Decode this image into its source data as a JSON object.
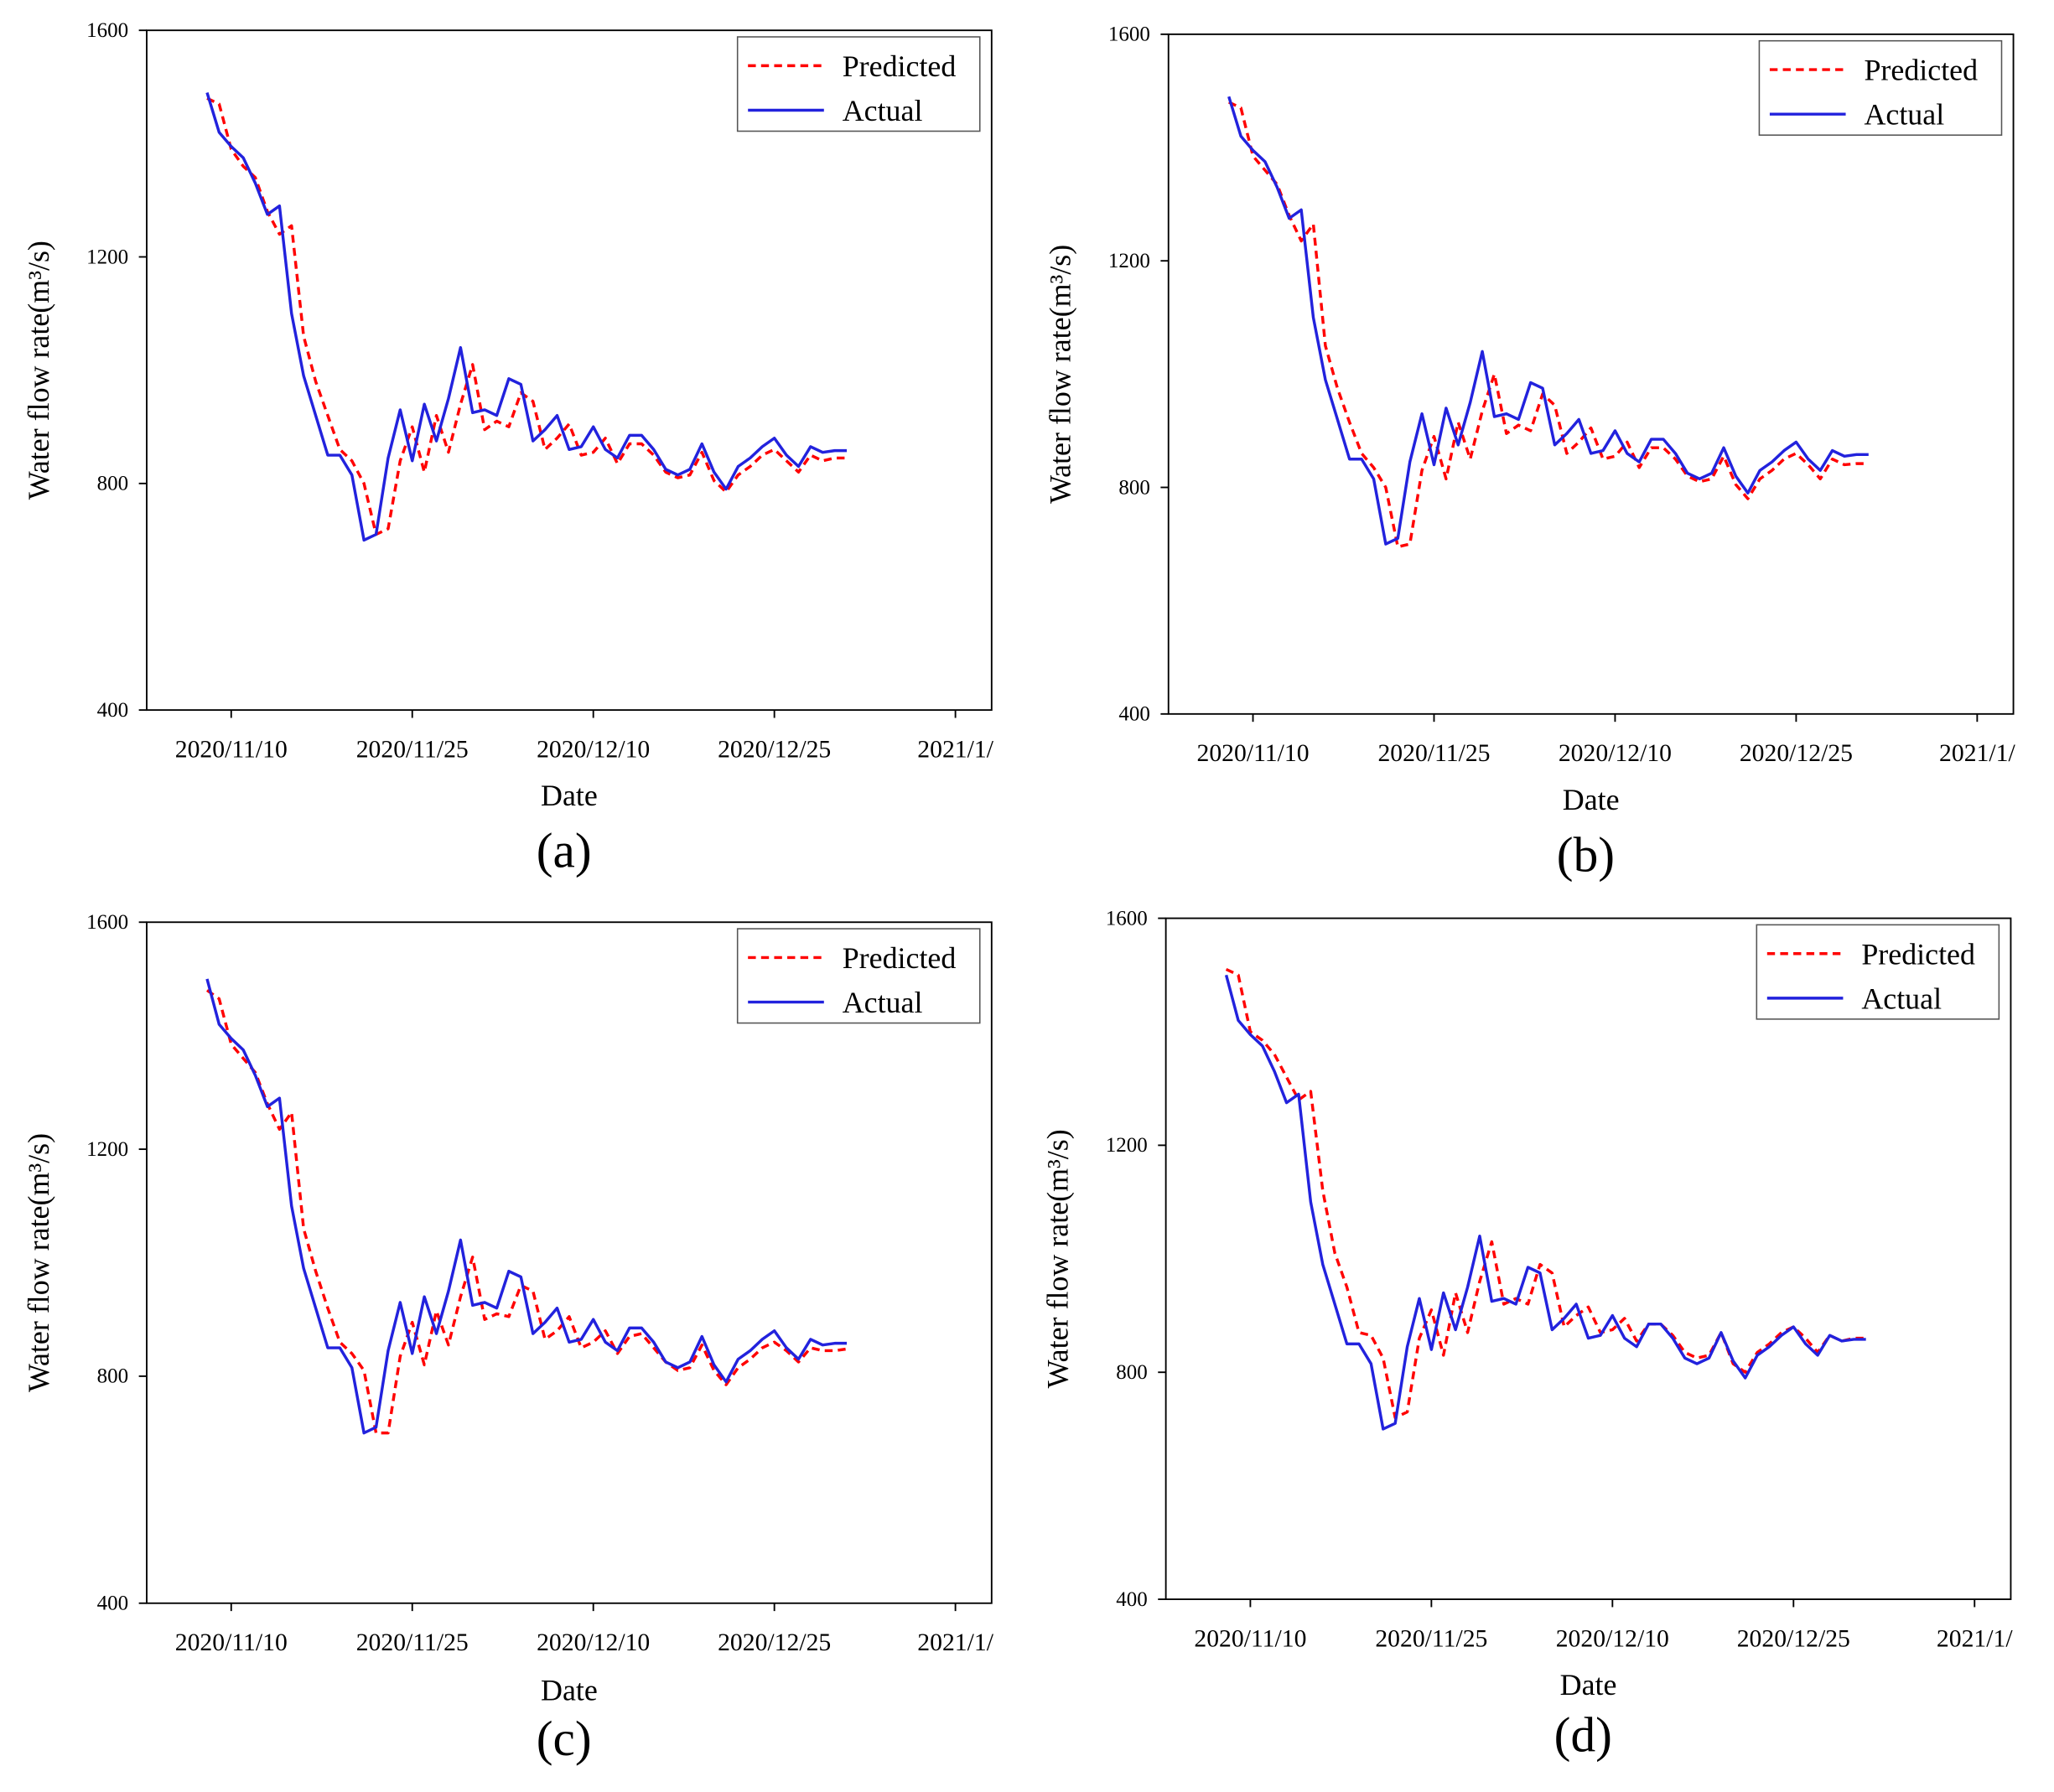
{
  "chart_data": [
    {
      "type": "line",
      "caption": "(a)",
      "xlabel": "Date",
      "ylabel": "Water flow rate(m³/s)",
      "legend": "upper right",
      "x": [
        "2020/11/8",
        "2020/11/9",
        "2020/11/10",
        "2020/11/11",
        "2020/11/12",
        "2020/11/13",
        "2020/11/14",
        "2020/11/15",
        "2020/11/16",
        "2020/11/17",
        "2020/11/18",
        "2020/11/19",
        "2020/11/20",
        "2020/11/21",
        "2020/11/22",
        "2020/11/23",
        "2020/11/24",
        "2020/11/25",
        "2020/11/26",
        "2020/11/27",
        "2020/11/28",
        "2020/11/29",
        "2020/11/30",
        "2020/12/1",
        "2020/12/2",
        "2020/12/3",
        "2020/12/4",
        "2020/12/5",
        "2020/12/6",
        "2020/12/7",
        "2020/12/8",
        "2020/12/9",
        "2020/12/10",
        "2020/12/11",
        "2020/12/12",
        "2020/12/13",
        "2020/12/14",
        "2020/12/15",
        "2020/12/16",
        "2020/12/17",
        "2020/12/18",
        "2020/12/19",
        "2020/12/20",
        "2020/12/21",
        "2020/12/22",
        "2020/12/23",
        "2020/12/24",
        "2020/12/25",
        "2020/12/26",
        "2020/12/27",
        "2020/12/28",
        "2020/12/29",
        "2020/12/30",
        "2020/12/31"
      ],
      "series": [
        {
          "name": "Predicted",
          "color": "#ff0000",
          "dash": true,
          "values": [
            1480,
            1470,
            1390,
            1360,
            1340,
            1280,
            1240,
            1255,
            1060,
            980,
            920,
            860,
            840,
            800,
            710,
            720,
            840,
            900,
            820,
            920,
            855,
            940,
            1010,
            895,
            910,
            900,
            960,
            945,
            860,
            880,
            905,
            850,
            855,
            880,
            835,
            870,
            870,
            850,
            820,
            810,
            815,
            855,
            805,
            785,
            815,
            830,
            850,
            860,
            840,
            820,
            850,
            840,
            845,
            845
          ]
        },
        {
          "name": "Actual",
          "color": "#2222dd",
          "dash": false,
          "values": [
            1490,
            1420,
            1395,
            1375,
            1330,
            1275,
            1290,
            1100,
            990,
            920,
            850,
            850,
            815,
            700,
            710,
            845,
            930,
            840,
            940,
            875,
            950,
            1040,
            925,
            930,
            920,
            985,
            975,
            875,
            895,
            920,
            860,
            865,
            900,
            860,
            845,
            885,
            885,
            860,
            825,
            815,
            825,
            870,
            820,
            790,
            830,
            845,
            865,
            880,
            850,
            830,
            865,
            855,
            858,
            858
          ]
        }
      ],
      "xlim": [
        "2020/11/3",
        "2021/1/12"
      ],
      "ylim": [
        400,
        1600
      ],
      "xticks": [
        "2020/11/10",
        "2020/11/25",
        "2020/12/10",
        "2020/12/25",
        {
          "value": "2021/1/9",
          "label": "2021/1/"
        }
      ],
      "yticks": [
        400,
        800,
        1200,
        1600
      ]
    },
    {
      "type": "line",
      "caption": "(b)",
      "xlabel": "Date",
      "ylabel": "Water flow rate(m³/s)",
      "legend": "upper right",
      "x": [
        "2020/11/8",
        "2020/11/9",
        "2020/11/10",
        "2020/11/11",
        "2020/11/12",
        "2020/11/13",
        "2020/11/14",
        "2020/11/15",
        "2020/11/16",
        "2020/11/17",
        "2020/11/18",
        "2020/11/19",
        "2020/11/20",
        "2020/11/21",
        "2020/11/22",
        "2020/11/23",
        "2020/11/24",
        "2020/11/25",
        "2020/11/26",
        "2020/11/27",
        "2020/11/28",
        "2020/11/29",
        "2020/11/30",
        "2020/12/1",
        "2020/12/2",
        "2020/12/3",
        "2020/12/4",
        "2020/12/5",
        "2020/12/6",
        "2020/12/7",
        "2020/12/8",
        "2020/12/9",
        "2020/12/10",
        "2020/12/11",
        "2020/12/12",
        "2020/12/13",
        "2020/12/14",
        "2020/12/15",
        "2020/12/16",
        "2020/12/17",
        "2020/12/18",
        "2020/12/19",
        "2020/12/20",
        "2020/12/21",
        "2020/12/22",
        "2020/12/23",
        "2020/12/24",
        "2020/12/25",
        "2020/12/26",
        "2020/12/27",
        "2020/12/28",
        "2020/12/29",
        "2020/12/30",
        "2020/12/31"
      ],
      "series": [
        {
          "name": "Predicted",
          "color": "#ff0000",
          "dash": true,
          "values": [
            1480,
            1470,
            1385,
            1360,
            1335,
            1280,
            1235,
            1265,
            1050,
            975,
            915,
            860,
            835,
            800,
            695,
            700,
            830,
            890,
            815,
            915,
            850,
            935,
            1000,
            895,
            910,
            900,
            965,
            945,
            860,
            880,
            905,
            850,
            855,
            880,
            835,
            870,
            870,
            850,
            820,
            810,
            815,
            855,
            805,
            780,
            815,
            830,
            850,
            860,
            840,
            815,
            850,
            840,
            842,
            842
          ]
        },
        {
          "name": "Actual",
          "color": "#2222dd",
          "dash": false,
          "values": [
            1490,
            1420,
            1395,
            1375,
            1330,
            1275,
            1290,
            1100,
            990,
            920,
            850,
            850,
            815,
            700,
            710,
            845,
            930,
            840,
            940,
            875,
            950,
            1040,
            925,
            930,
            920,
            985,
            975,
            875,
            895,
            920,
            860,
            865,
            900,
            860,
            845,
            885,
            885,
            860,
            825,
            815,
            825,
            870,
            820,
            790,
            830,
            845,
            865,
            880,
            850,
            830,
            865,
            855,
            858,
            858
          ]
        }
      ],
      "xlim": [
        "2020/11/3",
        "2021/1/12"
      ],
      "ylim": [
        400,
        1600
      ],
      "xticks": [
        "2020/11/10",
        "2020/11/25",
        "2020/12/10",
        "2020/12/25",
        {
          "value": "2021/1/9",
          "label": "2021/1/"
        }
      ],
      "yticks": [
        400,
        800,
        1200,
        1600
      ]
    },
    {
      "type": "line",
      "caption": "(c)",
      "xlabel": "Date",
      "ylabel": "Water flow rate(m³/s)",
      "legend": "upper right",
      "x": [
        "2020/11/8",
        "2020/11/9",
        "2020/11/10",
        "2020/11/11",
        "2020/11/12",
        "2020/11/13",
        "2020/11/14",
        "2020/11/15",
        "2020/11/16",
        "2020/11/17",
        "2020/11/18",
        "2020/11/19",
        "2020/11/20",
        "2020/11/21",
        "2020/11/22",
        "2020/11/23",
        "2020/11/24",
        "2020/11/25",
        "2020/11/26",
        "2020/11/27",
        "2020/11/28",
        "2020/11/29",
        "2020/11/30",
        "2020/12/1",
        "2020/12/2",
        "2020/12/3",
        "2020/12/4",
        "2020/12/5",
        "2020/12/6",
        "2020/12/7",
        "2020/12/8",
        "2020/12/9",
        "2020/12/10",
        "2020/12/11",
        "2020/12/12",
        "2020/12/13",
        "2020/12/14",
        "2020/12/15",
        "2020/12/16",
        "2020/12/17",
        "2020/12/18",
        "2020/12/19",
        "2020/12/20",
        "2020/12/21",
        "2020/12/22",
        "2020/12/23",
        "2020/12/24",
        "2020/12/25",
        "2020/12/26",
        "2020/12/27",
        "2020/12/28",
        "2020/12/29",
        "2020/12/30",
        "2020/12/31"
      ],
      "series": [
        {
          "name": "Predicted",
          "color": "#ff0000",
          "dash": true,
          "values": [
            1480,
            1465,
            1385,
            1360,
            1335,
            1280,
            1235,
            1265,
            1060,
            985,
            920,
            860,
            840,
            810,
            700,
            700,
            835,
            895,
            820,
            915,
            855,
            940,
            1010,
            900,
            910,
            905,
            960,
            950,
            865,
            880,
            905,
            850,
            860,
            880,
            840,
            870,
            875,
            850,
            825,
            810,
            815,
            855,
            810,
            785,
            815,
            830,
            850,
            860,
            845,
            825,
            850,
            845,
            845,
            848
          ]
        },
        {
          "name": "Actual",
          "color": "#2222dd",
          "dash": false,
          "values": [
            1500,
            1420,
            1395,
            1375,
            1330,
            1275,
            1290,
            1100,
            990,
            920,
            850,
            850,
            815,
            700,
            710,
            845,
            930,
            840,
            940,
            875,
            950,
            1040,
            925,
            930,
            920,
            985,
            975,
            875,
            895,
            920,
            860,
            865,
            900,
            860,
            845,
            885,
            885,
            860,
            825,
            815,
            825,
            870,
            820,
            790,
            830,
            845,
            865,
            880,
            850,
            830,
            865,
            855,
            858,
            858
          ]
        }
      ],
      "xlim": [
        "2020/11/3",
        "2021/1/12"
      ],
      "ylim": [
        400,
        1600
      ],
      "xticks": [
        "2020/11/10",
        "2020/11/25",
        "2020/12/10",
        "2020/12/25",
        {
          "value": "2021/1/9",
          "label": "2021/1/"
        }
      ],
      "yticks": [
        400,
        800,
        1200,
        1600
      ]
    },
    {
      "type": "line",
      "caption": "(d)",
      "xlabel": "Date",
      "ylabel": "Water flow rate(m³/s)",
      "legend": "upper right",
      "x": [
        "2020/11/8",
        "2020/11/9",
        "2020/11/10",
        "2020/11/11",
        "2020/11/12",
        "2020/11/13",
        "2020/11/14",
        "2020/11/15",
        "2020/11/16",
        "2020/11/17",
        "2020/11/18",
        "2020/11/19",
        "2020/11/20",
        "2020/11/21",
        "2020/11/22",
        "2020/11/23",
        "2020/11/24",
        "2020/11/25",
        "2020/11/26",
        "2020/11/27",
        "2020/11/28",
        "2020/11/29",
        "2020/11/30",
        "2020/12/1",
        "2020/12/2",
        "2020/12/3",
        "2020/12/4",
        "2020/12/5",
        "2020/12/6",
        "2020/12/7",
        "2020/12/8",
        "2020/12/9",
        "2020/12/10",
        "2020/12/11",
        "2020/12/12",
        "2020/12/13",
        "2020/12/14",
        "2020/12/15",
        "2020/12/16",
        "2020/12/17",
        "2020/12/18",
        "2020/12/19",
        "2020/12/20",
        "2020/12/21",
        "2020/12/22",
        "2020/12/23",
        "2020/12/24",
        "2020/12/25",
        "2020/12/26",
        "2020/12/27",
        "2020/12/28",
        "2020/12/29",
        "2020/12/30",
        "2020/12/31"
      ],
      "series": [
        {
          "name": "Predicted",
          "color": "#ff0000",
          "dash": true,
          "values": [
            1510,
            1500,
            1400,
            1385,
            1360,
            1320,
            1280,
            1295,
            1120,
            1010,
            950,
            870,
            865,
            825,
            720,
            730,
            860,
            910,
            830,
            940,
            870,
            960,
            1030,
            920,
            930,
            920,
            990,
            975,
            880,
            900,
            915,
            870,
            875,
            895,
            855,
            885,
            885,
            865,
            835,
            825,
            830,
            870,
            815,
            800,
            835,
            850,
            870,
            880,
            860,
            835,
            865,
            855,
            860,
            860
          ]
        },
        {
          "name": "Actual",
          "color": "#2222dd",
          "dash": false,
          "values": [
            1500,
            1420,
            1395,
            1375,
            1330,
            1275,
            1290,
            1100,
            990,
            920,
            850,
            850,
            815,
            700,
            710,
            845,
            930,
            840,
            940,
            875,
            950,
            1040,
            925,
            930,
            920,
            985,
            975,
            875,
            895,
            920,
            860,
            865,
            900,
            860,
            845,
            885,
            885,
            860,
            825,
            815,
            825,
            870,
            820,
            790,
            830,
            845,
            865,
            880,
            850,
            830,
            865,
            855,
            858,
            858
          ]
        }
      ],
      "xlim": [
        "2020/11/3",
        "2021/1/12"
      ],
      "ylim": [
        400,
        1600
      ],
      "xticks": [
        "2020/11/10",
        "2020/11/25",
        "2020/12/10",
        "2020/12/25",
        {
          "value": "2021/1/9",
          "label": "2021/1/"
        }
      ],
      "yticks": [
        400,
        800,
        1200,
        1600
      ]
    }
  ]
}
